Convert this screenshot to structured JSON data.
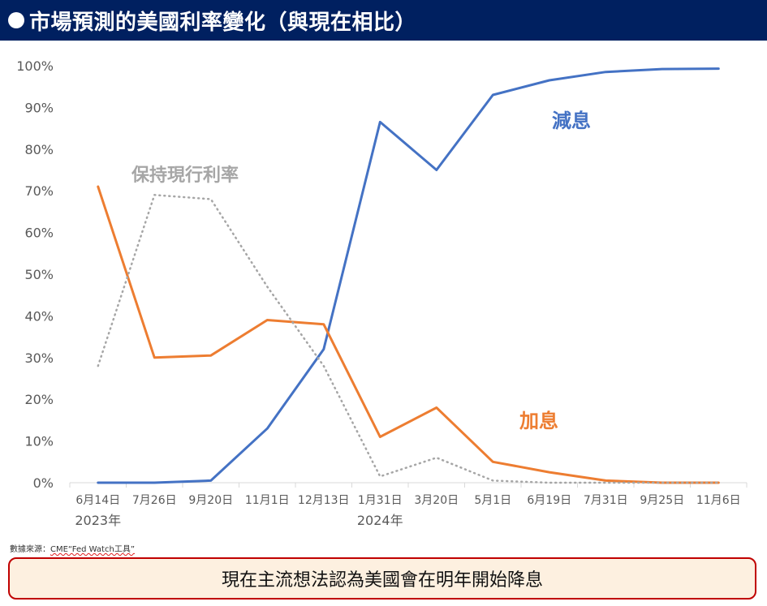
{
  "header": {
    "title": "市場預測的美國利率變化（與現在相比）"
  },
  "chart_data": {
    "type": "line",
    "categories": [
      "6月14日",
      "7月26日",
      "9月20日",
      "11月1日",
      "12月13日",
      "1月31日",
      "3月20日",
      "5月1日",
      "6月19日",
      "7月31日",
      "9月25日",
      "11月6日"
    ],
    "year_labels": [
      {
        "index": 0,
        "label": "2023年"
      },
      {
        "index": 5,
        "label": "2024年"
      }
    ],
    "ylim": [
      0,
      100
    ],
    "yticks": [
      "0%",
      "10%",
      "20%",
      "30%",
      "40%",
      "50%",
      "60%",
      "70%",
      "80%",
      "90%",
      "100%"
    ],
    "series": [
      {
        "name": "減息",
        "color": "#4472c4",
        "style": "solid",
        "values": [
          0,
          0,
          0.5,
          13,
          32,
          86.5,
          75,
          93,
          96.5,
          98.5,
          99.2,
          99.3
        ]
      },
      {
        "name": "加息",
        "color": "#ed7d31",
        "style": "solid",
        "values": [
          71,
          30,
          30.5,
          39,
          38,
          11,
          18,
          5,
          2.5,
          0.5,
          0,
          0
        ]
      },
      {
        "name": "保持現行利率",
        "color": "#a6a6a6",
        "style": "dotted",
        "values": [
          28,
          69,
          68,
          47,
          28,
          1.5,
          6,
          0.5,
          0,
          0,
          0,
          0
        ]
      }
    ]
  },
  "footer": {
    "source_prefix": "數據來源：",
    "source_tool": "CME“Fed Watch工具”",
    "summary": "現在主流想法認為美國會在明年開始降息"
  }
}
